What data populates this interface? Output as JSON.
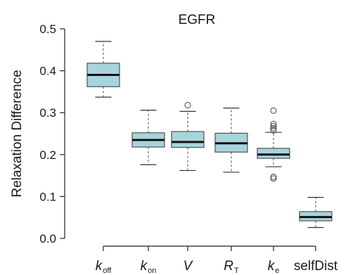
{
  "chart_data": {
    "type": "boxplot",
    "title": "EGFR",
    "ylabel": "Relaxation Difference",
    "xlabel": "",
    "ylim": [
      0,
      0.5
    ],
    "yticks": [
      "0.0",
      "0.1",
      "0.2",
      "0.3",
      "0.4",
      "0.5"
    ],
    "grid": false,
    "box_color": "#a8d4dc",
    "median_color": "#111111",
    "categories": [
      {
        "main": "k",
        "sub": "off",
        "italic": true
      },
      {
        "main": "k",
        "sub": "on",
        "italic": true
      },
      {
        "main": "V",
        "sub": "",
        "italic": true
      },
      {
        "main": "R",
        "sub": "T",
        "italic": true
      },
      {
        "main": "k",
        "sub": "e",
        "italic": true
      },
      {
        "main": "selfDist",
        "sub": "",
        "italic": false
      }
    ],
    "boxes": [
      {
        "whisker_low": 0.337,
        "q1": 0.362,
        "median": 0.39,
        "q3": 0.418,
        "whisker_high": 0.47,
        "outliers": []
      },
      {
        "whisker_low": 0.176,
        "q1": 0.218,
        "median": 0.235,
        "q3": 0.252,
        "whisker_high": 0.306,
        "outliers": []
      },
      {
        "whisker_low": 0.162,
        "q1": 0.217,
        "median": 0.23,
        "q3": 0.255,
        "whisker_high": 0.303,
        "outliers": [
          0.318
        ]
      },
      {
        "whisker_low": 0.158,
        "q1": 0.206,
        "median": 0.227,
        "q3": 0.251,
        "whisker_high": 0.311,
        "outliers": []
      },
      {
        "whisker_low": 0.171,
        "q1": 0.191,
        "median": 0.2,
        "q3": 0.215,
        "whisker_high": 0.253,
        "outliers": [
          0.143,
          0.147,
          0.258,
          0.263,
          0.268,
          0.273,
          0.305
        ]
      },
      {
        "whisker_low": 0.026,
        "q1": 0.042,
        "median": 0.051,
        "q3": 0.064,
        "whisker_high": 0.098,
        "outliers": []
      }
    ]
  }
}
